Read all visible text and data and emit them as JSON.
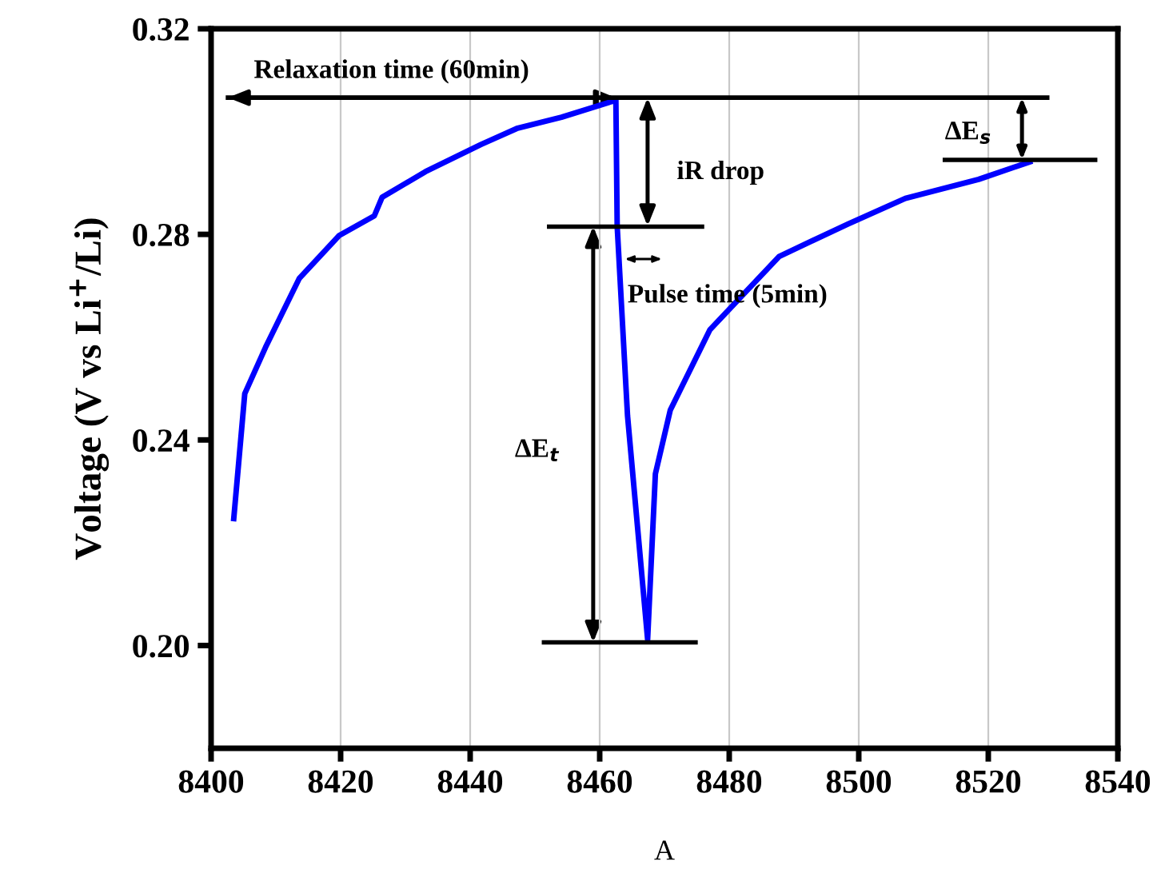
{
  "chart_data": {
    "type": "line",
    "xlabel": "A",
    "ylabel": "Voltage (V vs Li$^{+}$/Li)",
    "xlim": [
      8400,
      8540
    ],
    "xticks": [
      8400,
      8420,
      8440,
      8460,
      8480,
      8500,
      8520,
      8540
    ],
    "ylim": [
      0.18,
      0.32
    ],
    "yticks": [
      {
        "value": 0.2,
        "label": "0.20"
      },
      {
        "value": 0.24,
        "label": "0.24"
      },
      {
        "value": 0.28,
        "label": "0.28"
      },
      {
        "value": 0.32,
        "label": "0.32"
      }
    ],
    "grid": "x",
    "series": [
      {
        "color": "#0000ff",
        "x": [
          8403.5,
          8405.2,
          8408.4,
          8413.6,
          8419.8,
          8425.2,
          8426.4,
          8433.1,
          8441.7,
          8447.2,
          8454.1,
          8462.5,
          8462.7,
          8464.3,
          8467.4,
          8468.6,
          8470.9,
          8477,
          8487.7,
          8498.3,
          8507.2,
          8518.5,
          8526.4
        ],
        "values": [
          0.2247,
          0.249,
          0.258,
          0.2714,
          0.2798,
          0.2836,
          0.2872,
          0.2922,
          0.2975,
          0.3006,
          0.3028,
          0.3061,
          0.2816,
          0.2447,
          0.2012,
          0.2334,
          0.2458,
          0.2614,
          0.2757,
          0.282,
          0.287,
          0.2907,
          0.2941
        ]
      },
      {
        "color": "#000000",
        "x": [
          8402.6,
          8529.1
        ],
        "values": [
          0.3066,
          0.3066
        ]
      },
      {
        "color": "#000000",
        "x": [
          8452.2,
          8475.8
        ],
        "values": [
          0.2815,
          0.2815
        ]
      },
      {
        "color": "#000000",
        "x": [
          8451.4,
          8474.8
        ],
        "values": [
          0.2006,
          0.2006
        ]
      },
      {
        "color": "#000000",
        "x": [
          8513.3,
          8536.5
        ],
        "values": [
          0.2945,
          0.2945
        ]
      }
    ],
    "annotations": [
      "Relaxation time (60min)",
      "iR drop",
      "Pulse time (5min)",
      "ΔE$_{t}$",
      "ΔE$_{s}$"
    ]
  }
}
